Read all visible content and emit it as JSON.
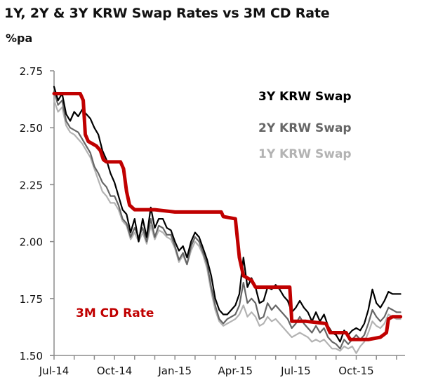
{
  "chart_data": {
    "type": "line",
    "title": "1Y, 2Y & 3Y KRW Swap Rates vs 3M CD Rate",
    "ylabel": "%pa",
    "xlabel": "",
    "ylim": [
      1.5,
      2.75
    ],
    "yticks": [
      "2.75",
      "2.50",
      "2.25",
      "2.00",
      "1.75",
      "1.50"
    ],
    "ytick_values": [
      2.75,
      2.5,
      2.25,
      2.0,
      1.75,
      1.5
    ],
    "x_unit": "months since Jul-14",
    "xlim": [
      0,
      17.3
    ],
    "xtick_labels": [
      "Jul-14",
      "Oct-14",
      "Jan-15",
      "Apr-15",
      "Jul-15",
      "Oct-15"
    ],
    "xtick_label_values": [
      0,
      3,
      6,
      9,
      12,
      15
    ],
    "minor_tick_values": [
      0,
      1,
      2,
      3,
      4,
      5,
      6,
      7,
      8,
      9,
      10,
      11,
      12,
      13,
      14,
      15,
      16,
      17
    ],
    "grid": false,
    "legend_position": "top-right",
    "series": [
      {
        "name": "3Y KRW Swap",
        "color": "#000000",
        "x": [
          0,
          0.2,
          0.4,
          0.6,
          0.8,
          1.0,
          1.2,
          1.4,
          1.6,
          1.8,
          2.0,
          2.2,
          2.4,
          2.6,
          2.8,
          3.0,
          3.2,
          3.4,
          3.6,
          3.8,
          4.0,
          4.2,
          4.4,
          4.6,
          4.8,
          5.0,
          5.2,
          5.4,
          5.6,
          5.8,
          6.0,
          6.2,
          6.4,
          6.6,
          6.8,
          7.0,
          7.2,
          7.4,
          7.6,
          7.8,
          8.0,
          8.2,
          8.4,
          8.6,
          8.8,
          9.0,
          9.2,
          9.4,
          9.6,
          9.8,
          10.0,
          10.2,
          10.4,
          10.6,
          10.8,
          11.0,
          11.2,
          11.4,
          11.6,
          11.8,
          12.0,
          12.2,
          12.4,
          12.6,
          12.8,
          13.0,
          13.2,
          13.4,
          13.6,
          13.8,
          14.0,
          14.2,
          14.4,
          14.6,
          14.8,
          15.0,
          15.2,
          15.4,
          15.6,
          15.8,
          16.0,
          16.2,
          16.4,
          16.6,
          16.8,
          17.0,
          17.2
        ],
        "values": [
          2.68,
          2.62,
          2.65,
          2.56,
          2.53,
          2.57,
          2.55,
          2.58,
          2.56,
          2.54,
          2.5,
          2.47,
          2.4,
          2.36,
          2.3,
          2.26,
          2.2,
          2.14,
          2.12,
          2.04,
          2.1,
          2.0,
          2.1,
          2.02,
          2.15,
          2.06,
          2.1,
          2.1,
          2.06,
          2.05,
          2.0,
          1.96,
          1.98,
          1.93,
          2.0,
          2.04,
          2.02,
          1.97,
          1.92,
          1.85,
          1.75,
          1.7,
          1.68,
          1.68,
          1.7,
          1.72,
          1.77,
          1.93,
          1.8,
          1.84,
          1.8,
          1.73,
          1.74,
          1.8,
          1.79,
          1.81,
          1.79,
          1.76,
          1.74,
          1.69,
          1.71,
          1.74,
          1.71,
          1.69,
          1.65,
          1.69,
          1.65,
          1.68,
          1.63,
          1.6,
          1.59,
          1.56,
          1.61,
          1.59,
          1.61,
          1.62,
          1.61,
          1.64,
          1.7,
          1.79,
          1.73,
          1.71,
          1.74,
          1.78,
          1.77,
          1.77,
          1.77
        ]
      },
      {
        "name": "2Y KRW Swap",
        "color": "#666666",
        "x": [
          0,
          0.2,
          0.4,
          0.6,
          0.8,
          1.0,
          1.2,
          1.4,
          1.6,
          1.8,
          2.0,
          2.2,
          2.4,
          2.6,
          2.8,
          3.0,
          3.2,
          3.4,
          3.6,
          3.8,
          4.0,
          4.2,
          4.4,
          4.6,
          4.8,
          5.0,
          5.2,
          5.4,
          5.6,
          5.8,
          6.0,
          6.2,
          6.4,
          6.6,
          6.8,
          7.0,
          7.2,
          7.4,
          7.6,
          7.8,
          8.0,
          8.2,
          8.4,
          8.6,
          8.8,
          9.0,
          9.2,
          9.4,
          9.6,
          9.8,
          10.0,
          10.2,
          10.4,
          10.6,
          10.8,
          11.0,
          11.2,
          11.4,
          11.6,
          11.8,
          12.0,
          12.2,
          12.4,
          12.6,
          12.8,
          13.0,
          13.2,
          13.4,
          13.6,
          13.8,
          14.0,
          14.2,
          14.4,
          14.6,
          14.8,
          15.0,
          15.2,
          15.4,
          15.6,
          15.8,
          16.0,
          16.2,
          16.4,
          16.6,
          16.8,
          17.0,
          17.2
        ],
        "values": [
          2.66,
          2.6,
          2.62,
          2.53,
          2.5,
          2.49,
          2.48,
          2.45,
          2.42,
          2.39,
          2.33,
          2.3,
          2.26,
          2.24,
          2.2,
          2.2,
          2.16,
          2.1,
          2.08,
          2.02,
          2.06,
          2.02,
          2.06,
          2.0,
          2.1,
          2.02,
          2.07,
          2.06,
          2.03,
          2.03,
          1.98,
          1.92,
          1.95,
          1.9,
          1.98,
          2.02,
          2.0,
          1.95,
          1.9,
          1.8,
          1.72,
          1.66,
          1.64,
          1.66,
          1.67,
          1.68,
          1.72,
          1.82,
          1.73,
          1.75,
          1.73,
          1.66,
          1.67,
          1.73,
          1.7,
          1.72,
          1.7,
          1.68,
          1.66,
          1.62,
          1.64,
          1.67,
          1.64,
          1.62,
          1.6,
          1.63,
          1.6,
          1.62,
          1.58,
          1.56,
          1.55,
          1.53,
          1.57,
          1.55,
          1.57,
          1.59,
          1.57,
          1.59,
          1.64,
          1.7,
          1.67,
          1.65,
          1.67,
          1.71,
          1.7,
          1.69,
          1.69
        ]
      },
      {
        "name": "1Y KRW Swap",
        "color": "#b3b3b3",
        "x": [
          0,
          0.2,
          0.4,
          0.6,
          0.8,
          1.0,
          1.2,
          1.4,
          1.6,
          1.8,
          2.0,
          2.2,
          2.4,
          2.6,
          2.8,
          3.0,
          3.2,
          3.4,
          3.6,
          3.8,
          4.0,
          4.2,
          4.4,
          4.6,
          4.8,
          5.0,
          5.2,
          5.4,
          5.6,
          5.8,
          6.0,
          6.2,
          6.4,
          6.6,
          6.8,
          7.0,
          7.2,
          7.4,
          7.6,
          7.8,
          8.0,
          8.2,
          8.4,
          8.6,
          8.8,
          9.0,
          9.2,
          9.4,
          9.6,
          9.8,
          10.0,
          10.2,
          10.4,
          10.6,
          10.8,
          11.0,
          11.2,
          11.4,
          11.6,
          11.8,
          12.0,
          12.2,
          12.4,
          12.6,
          12.8,
          13.0,
          13.2,
          13.4,
          13.6,
          13.8,
          14.0,
          14.2,
          14.4,
          14.6,
          14.8,
          15.0,
          15.2,
          15.4,
          15.6,
          15.8,
          16.0,
          16.2,
          16.4,
          16.6,
          16.8,
          17.0,
          17.2
        ],
        "values": [
          2.62,
          2.57,
          2.59,
          2.51,
          2.48,
          2.47,
          2.45,
          2.43,
          2.4,
          2.37,
          2.32,
          2.27,
          2.22,
          2.2,
          2.17,
          2.17,
          2.14,
          2.09,
          2.07,
          2.01,
          2.04,
          2.0,
          2.04,
          1.99,
          2.07,
          2.01,
          2.05,
          2.04,
          2.02,
          2.01,
          1.97,
          1.91,
          1.94,
          1.9,
          1.96,
          2.0,
          1.98,
          1.94,
          1.88,
          1.78,
          1.7,
          1.65,
          1.63,
          1.64,
          1.65,
          1.66,
          1.68,
          1.72,
          1.67,
          1.69,
          1.67,
          1.63,
          1.64,
          1.67,
          1.65,
          1.66,
          1.64,
          1.62,
          1.6,
          1.58,
          1.59,
          1.6,
          1.59,
          1.58,
          1.56,
          1.57,
          1.56,
          1.57,
          1.55,
          1.53,
          1.53,
          1.52,
          1.54,
          1.53,
          1.54,
          1.51,
          1.54,
          1.56,
          1.6,
          1.65,
          1.63,
          1.62,
          1.64,
          1.68,
          1.67,
          1.66,
          1.66
        ]
      },
      {
        "name": "3M CD Rate",
        "color": "#c00000",
        "x": [
          0,
          1.3,
          1.45,
          1.55,
          1.7,
          2.1,
          2.3,
          2.45,
          2.6,
          3.3,
          3.45,
          3.6,
          3.75,
          4.0,
          5.0,
          6.0,
          7.0,
          8.3,
          8.4,
          9.0,
          9.2,
          9.4,
          9.6,
          9.8,
          10.0,
          11.7,
          11.8,
          12.5,
          13.5,
          13.7,
          14.5,
          14.7,
          15.4,
          15.6,
          16.2,
          16.5,
          16.6,
          16.8,
          17.2
        ],
        "values": [
          2.65,
          2.65,
          2.62,
          2.47,
          2.44,
          2.42,
          2.4,
          2.36,
          2.35,
          2.35,
          2.32,
          2.22,
          2.16,
          2.14,
          2.14,
          2.13,
          2.13,
          2.13,
          2.11,
          2.1,
          1.93,
          1.85,
          1.84,
          1.83,
          1.8,
          1.8,
          1.65,
          1.65,
          1.64,
          1.6,
          1.6,
          1.57,
          1.57,
          1.57,
          1.58,
          1.6,
          1.66,
          1.67,
          1.67
        ]
      }
    ],
    "annotations": [
      {
        "text": "3Y KRW Swap",
        "color": "#000000"
      },
      {
        "text": "2Y KRW Swap",
        "color": "#666666"
      },
      {
        "text": "1Y KRW Swap",
        "color": "#b3b3b3"
      },
      {
        "text": "3M CD Rate",
        "color": "#c00000"
      }
    ]
  }
}
